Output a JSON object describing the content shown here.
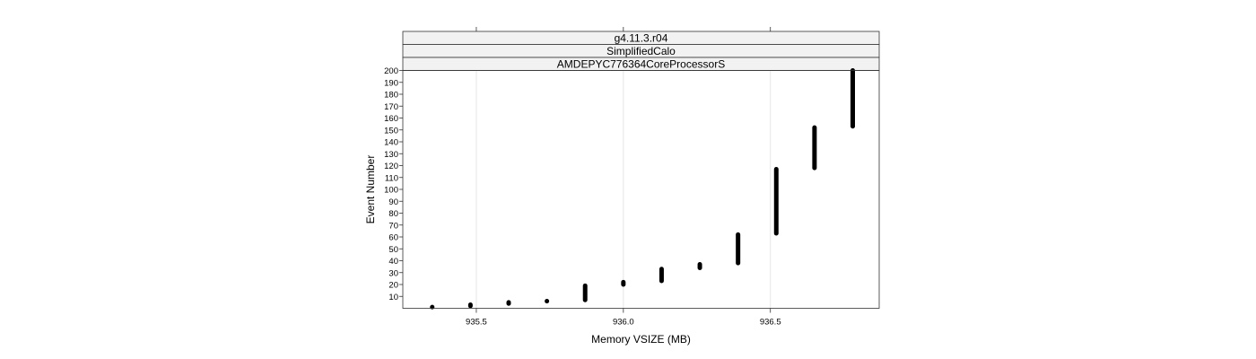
{
  "chart_data": {
    "type": "scatter",
    "strips": [
      "g4.11.3.r04",
      "SimplifiedCalo",
      "AMDEPYC776364CoreProcessorS"
    ],
    "xlabel": "Memory VSIZE (MB)",
    "ylabel": "Event Number",
    "xlim": [
      935.25,
      936.87
    ],
    "ylim": [
      0,
      200
    ],
    "x_ticks": [
      935.5,
      936.0,
      936.5
    ],
    "x_tick_labels": [
      "935.5",
      "936.0",
      "936.5"
    ],
    "y_ticks": [
      10,
      20,
      30,
      40,
      50,
      60,
      70,
      80,
      90,
      100,
      110,
      120,
      130,
      140,
      150,
      160,
      170,
      180,
      190,
      200
    ],
    "grid": true,
    "segments": [
      {
        "x": 935.35,
        "y_from": 1,
        "y_to": 1
      },
      {
        "x": 935.48,
        "y_from": 2,
        "y_to": 3
      },
      {
        "x": 935.61,
        "y_from": 4,
        "y_to": 5
      },
      {
        "x": 935.74,
        "y_from": 6,
        "y_to": 6
      },
      {
        "x": 935.87,
        "y_from": 7,
        "y_to": 19
      },
      {
        "x": 936.0,
        "y_from": 20,
        "y_to": 22
      },
      {
        "x": 936.13,
        "y_from": 23,
        "y_to": 33
      },
      {
        "x": 936.26,
        "y_from": 34,
        "y_to": 37
      },
      {
        "x": 936.39,
        "y_from": 38,
        "y_to": 62
      },
      {
        "x": 936.52,
        "y_from": 63,
        "y_to": 117
      },
      {
        "x": 936.65,
        "y_from": 118,
        "y_to": 152
      },
      {
        "x": 936.78,
        "y_from": 153,
        "y_to": 200
      }
    ]
  }
}
